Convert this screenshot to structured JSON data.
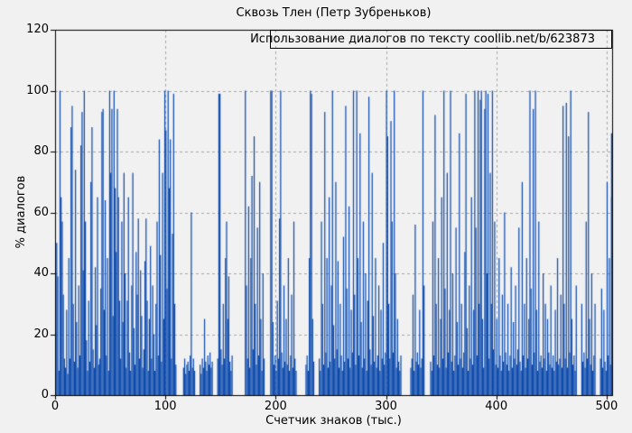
{
  "window": {
    "background": "#f1f1f1"
  },
  "chart_data": {
    "type": "bar",
    "title": "Сквозь Тлен (Петр Зубреньков)",
    "legend_label": "Использование диалогов по тексту coollib.net/b/623873",
    "legend_position": "top-right, boxed, inside plot",
    "xlabel": "Счетчик знаков (тыс.)",
    "ylabel": "% диалогов",
    "xlim": [
      0,
      505
    ],
    "ylim": [
      0,
      120
    ],
    "x_ticks": [
      0,
      100,
      200,
      300,
      400,
      500
    ],
    "y_ticks": [
      0,
      20,
      40,
      60,
      80,
      100,
      120
    ],
    "grid": "dashed",
    "colors": {
      "bar": "#0c4aad",
      "grid": "#a8a8a8",
      "frame": "#000000",
      "background": "#f1f1f1",
      "text": "#000000"
    },
    "x_start": 0,
    "x_step": 1,
    "values": [
      21,
      50,
      39,
      8,
      100,
      65,
      57,
      33,
      12,
      9,
      28,
      7,
      45,
      12,
      88,
      95,
      30,
      11,
      74,
      24,
      9,
      36,
      13,
      82,
      93,
      41,
      100,
      57,
      18,
      8,
      31,
      11,
      70,
      88,
      15,
      9,
      42,
      23,
      65,
      10,
      12,
      35,
      93,
      94,
      28,
      64,
      13,
      45,
      8,
      100,
      73,
      94,
      26,
      100,
      68,
      47,
      94,
      65,
      31,
      12,
      57,
      24,
      73,
      40,
      9,
      31,
      65,
      14,
      8,
      36,
      73,
      22,
      10,
      47,
      33,
      58,
      12,
      41,
      26,
      9,
      15,
      44,
      58,
      31,
      8,
      25,
      49,
      12,
      36,
      20,
      8,
      30,
      57,
      13,
      84,
      46,
      11,
      73,
      25,
      100,
      87,
      35,
      100,
      68,
      84,
      12,
      53,
      99,
      30,
      10,
      0,
      0,
      0,
      0,
      0,
      0,
      9,
      12,
      7,
      10,
      11,
      8,
      13,
      60,
      9,
      12,
      8,
      0,
      0,
      0,
      0,
      10,
      7,
      12,
      9,
      25,
      11,
      8,
      13,
      10,
      14,
      9,
      11,
      0,
      0,
      0,
      0,
      12,
      99,
      99,
      15,
      10,
      30,
      12,
      45,
      57,
      25,
      39,
      11,
      8,
      13,
      0,
      0,
      0,
      0,
      0,
      0,
      0,
      0,
      0,
      0,
      0,
      100,
      36,
      12,
      62,
      9,
      45,
      72,
      15,
      85,
      30,
      10,
      55,
      13,
      70,
      25,
      8,
      40,
      12,
      0,
      0,
      0,
      0,
      0,
      100,
      100,
      24,
      10,
      13,
      8,
      31,
      12,
      58,
      100,
      14,
      9,
      36,
      11,
      25,
      10,
      45,
      8,
      13,
      33,
      9,
      57,
      12,
      8,
      0,
      0,
      0,
      0,
      0,
      0,
      0,
      0,
      10,
      13,
      8,
      45,
      100,
      99,
      25,
      11,
      0,
      0,
      0,
      0,
      12,
      8,
      57,
      30,
      10,
      93,
      14,
      45,
      9,
      65,
      11,
      36,
      100,
      23,
      12,
      70,
      15,
      44,
      9,
      30,
      13,
      8,
      52,
      11,
      95,
      35,
      12,
      62,
      9,
      28,
      14,
      100,
      33,
      10,
      100,
      45,
      13,
      86,
      24,
      9,
      57,
      12,
      40,
      8,
      31,
      98,
      15,
      10,
      73,
      26,
      11,
      45,
      9,
      13,
      36,
      8,
      28,
      12,
      50,
      10,
      14,
      100,
      85,
      30,
      12,
      90,
      57,
      14,
      100,
      40,
      9,
      25,
      11,
      8,
      13,
      0,
      0,
      0,
      0,
      0,
      0,
      0,
      0,
      9,
      12,
      33,
      8,
      56,
      11,
      14,
      10,
      28,
      9,
      12,
      100,
      36,
      0,
      0,
      0,
      0,
      0,
      11,
      8,
      57,
      13,
      92,
      30,
      10,
      45,
      9,
      25,
      65,
      12,
      100,
      35,
      9,
      73,
      14,
      28,
      100,
      11,
      40,
      8,
      13,
      55,
      24,
      10,
      86,
      12,
      30,
      9,
      14,
      47,
      99,
      22,
      8,
      36,
      12,
      65,
      10,
      28,
      100,
      55,
      13,
      100,
      30,
      97,
      100,
      25,
      9,
      94,
      100,
      40,
      99,
      12,
      73,
      30,
      100,
      15,
      57,
      10,
      25,
      9,
      45,
      13,
      8,
      33,
      11,
      60,
      14,
      10,
      30,
      8,
      13,
      42,
      9,
      24,
      12,
      36,
      10,
      15,
      55,
      11,
      8,
      70,
      13,
      30,
      9,
      45,
      12,
      25,
      100,
      35,
      10,
      94,
      14,
      100,
      28,
      8,
      57,
      11,
      13,
      9,
      40,
      12,
      30,
      8,
      25,
      14,
      10,
      36,
      9,
      13,
      8,
      28,
      11,
      45,
      10,
      12,
      33,
      9,
      95,
      30,
      12,
      96,
      9,
      85,
      14,
      100,
      25,
      10,
      13,
      8,
      36,
      0,
      0,
      0,
      0,
      30,
      11,
      14,
      9,
      57,
      12,
      93,
      25,
      10,
      40,
      8,
      13,
      30,
      0,
      0,
      0,
      0,
      12,
      35,
      9,
      28,
      11,
      8,
      70,
      13,
      45,
      10,
      86,
      65
    ]
  }
}
